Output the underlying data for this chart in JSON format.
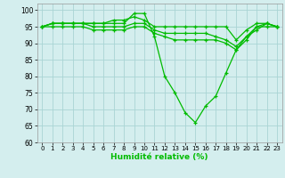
{
  "xlabel": "Humidité relative (%)",
  "background_color": "#d4eeee",
  "grid_color": "#aad4d4",
  "line_color": "#00bb00",
  "ylim": [
    60,
    102
  ],
  "xlim": [
    -0.5,
    23.5
  ],
  "yticks": [
    60,
    65,
    70,
    75,
    80,
    85,
    90,
    95,
    100
  ],
  "xticks": [
    0,
    1,
    2,
    3,
    4,
    5,
    6,
    7,
    8,
    9,
    10,
    11,
    12,
    13,
    14,
    15,
    16,
    17,
    18,
    19,
    20,
    21,
    22,
    23
  ],
  "series": [
    [
      95,
      96,
      96,
      96,
      96,
      96,
      96,
      96,
      96,
      99,
      99,
      92,
      80,
      75,
      69,
      66,
      71,
      74,
      81,
      88,
      92,
      94,
      96,
      95
    ],
    [
      95,
      96,
      96,
      96,
      96,
      96,
      96,
      97,
      97,
      98,
      97,
      95,
      95,
      95,
      95,
      95,
      95,
      95,
      95,
      91,
      94,
      96,
      96,
      95
    ],
    [
      95,
      96,
      96,
      96,
      96,
      95,
      95,
      95,
      95,
      96,
      96,
      94,
      93,
      93,
      93,
      93,
      93,
      92,
      91,
      89,
      92,
      95,
      96,
      95
    ],
    [
      95,
      95,
      95,
      95,
      95,
      94,
      94,
      94,
      94,
      95,
      95,
      93,
      92,
      91,
      91,
      91,
      91,
      91,
      90,
      88,
      91,
      95,
      95,
      95
    ]
  ]
}
